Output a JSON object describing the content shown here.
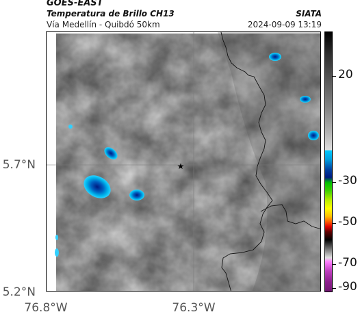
{
  "header": {
    "satellite": "GOES-EAST",
    "product": "Temperatura de Brillo CH13",
    "region": "Vía Medellín - Quibdó 50km",
    "source": "SIATA",
    "timestamp": "2024-09-09 13:19"
  },
  "axes": {
    "latitude_labels": [
      "5.7°N",
      "5.2°N"
    ],
    "longitude_labels": [
      "76.8°W",
      "76.3°W"
    ]
  },
  "colorbar": {
    "tick_labels": [
      "20",
      "-30",
      "-50",
      "-70",
      "-90"
    ]
  },
  "map": {
    "marker": "star-marker"
  }
}
